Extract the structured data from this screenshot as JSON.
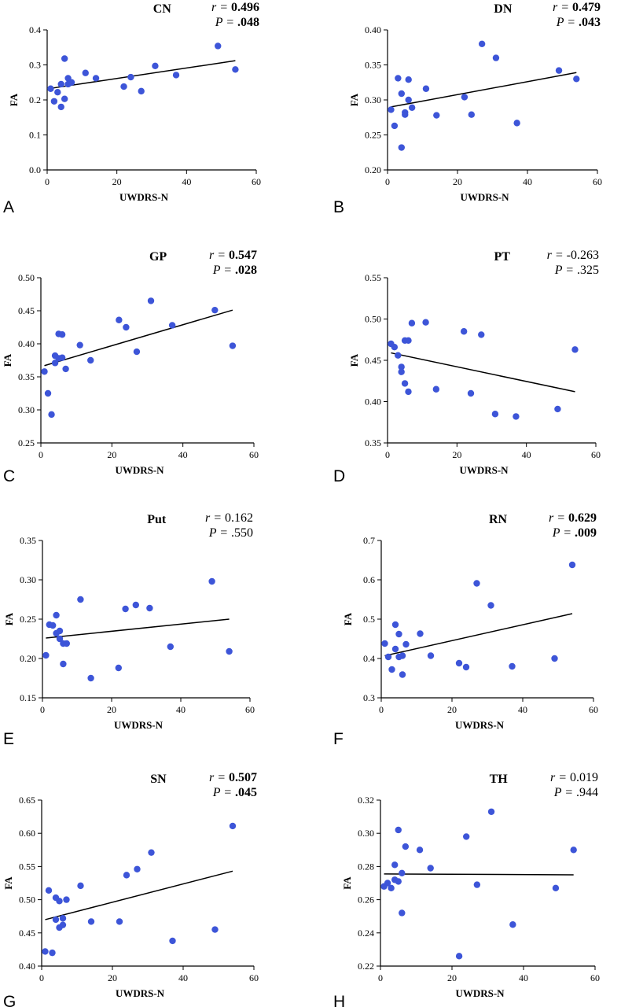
{
  "figure": {
    "panels": [
      {
        "letter": "A",
        "title": "CN",
        "ylabel": "FA",
        "xlabel": "UWDRS-N",
        "r_prefix": "r = ",
        "r_value": "0.496",
        "p_prefix": "P = ",
        "p_value": ".048",
        "significant": true
      },
      {
        "letter": "B",
        "title": "DN",
        "ylabel": "FA",
        "xlabel": "UWDRS-N",
        "r_prefix": "r = ",
        "r_value": "0.479",
        "p_prefix": "P = ",
        "p_value": ".043",
        "significant": true
      },
      {
        "letter": "C",
        "title": "GP",
        "ylabel": "FA",
        "xlabel": "UWDRS-N",
        "r_prefix": "r = ",
        "r_value": "0.547",
        "p_prefix": "P = ",
        "p_value": ".028",
        "significant": true
      },
      {
        "letter": "D",
        "title": "PT",
        "ylabel": "FA",
        "xlabel": "UWDRS-N",
        "r_prefix": "r = ",
        "r_value": "-0.263",
        "p_prefix": "P = ",
        "p_value": ".325",
        "significant": false
      },
      {
        "letter": "E",
        "title": "Put",
        "ylabel": "FA",
        "xlabel": "UWDRS-N",
        "r_prefix": "r = ",
        "r_value": "0.162",
        "p_prefix": "P = ",
        "p_value": ".550",
        "significant": false
      },
      {
        "letter": "F",
        "title": "RN",
        "ylabel": "FA",
        "xlabel": "UWDRS-N",
        "r_prefix": "r = ",
        "r_value": "0.629",
        "p_prefix": "P = ",
        "p_value": ".009",
        "significant": true
      },
      {
        "letter": "G",
        "title": "SN",
        "ylabel": "FA",
        "xlabel": "UWDRS-N",
        "r_prefix": "r = ",
        "r_value": "0.507",
        "p_prefix": "P = ",
        "p_value": ".045",
        "significant": true
      },
      {
        "letter": "H",
        "title": "TH",
        "ylabel": "FA",
        "xlabel": "UWDRS-N",
        "r_prefix": "r = ",
        "r_value": "0.019",
        "p_prefix": "P = ",
        "p_value": ".944",
        "significant": false
      }
    ]
  },
  "colors": {
    "points": "#3d55d8",
    "line": "#000000",
    "axis": "#000000",
    "background": "#ffffff"
  },
  "chart_data": [
    {
      "type": "scatter",
      "title": "CN",
      "xlabel": "UWDRS-N",
      "ylabel": "FA",
      "xlim": [
        0,
        60
      ],
      "ylim": [
        0.0,
        0.4
      ],
      "xticks": [
        "0",
        "20",
        "40",
        "60"
      ],
      "yticks": [
        "0.0",
        "0.1",
        "0.2",
        "0.3",
        "0.4"
      ],
      "x": [
        1,
        2,
        3,
        4,
        4,
        5,
        5,
        6,
        6,
        7,
        11,
        14,
        22,
        24,
        27,
        31,
        37,
        49,
        54
      ],
      "y": [
        0.232,
        0.196,
        0.222,
        0.245,
        0.18,
        0.318,
        0.203,
        0.262,
        0.245,
        0.25,
        0.277,
        0.262,
        0.238,
        0.265,
        0.225,
        0.297,
        0.271,
        0.354,
        0.287
      ],
      "fit": {
        "x": [
          1,
          54
        ],
        "y": [
          0.233,
          0.312
        ]
      },
      "annotations": {
        "r": "0.496",
        "p": ".048"
      },
      "grid": false
    },
    {
      "type": "scatter",
      "title": "DN",
      "xlabel": "UWDRS-N",
      "ylabel": "FA",
      "xlim": [
        0,
        60
      ],
      "ylim": [
        0.2,
        0.4
      ],
      "xticks": [
        "0",
        "20",
        "40",
        "60"
      ],
      "yticks": [
        "0.20",
        "0.25",
        "0.30",
        "0.35",
        "0.40"
      ],
      "x": [
        1,
        2,
        3,
        4,
        4,
        5,
        5,
        6,
        6,
        7,
        11,
        14,
        22,
        24,
        27,
        31,
        37,
        49,
        54
      ],
      "y": [
        0.286,
        0.263,
        0.331,
        0.309,
        0.232,
        0.282,
        0.279,
        0.329,
        0.3,
        0.289,
        0.316,
        0.278,
        0.304,
        0.279,
        0.38,
        0.36,
        0.267,
        0.342,
        0.33
      ],
      "fit": {
        "x": [
          1,
          54
        ],
        "y": [
          0.29,
          0.339
        ]
      },
      "annotations": {
        "r": "0.479",
        "p": ".043"
      },
      "grid": false
    },
    {
      "type": "scatter",
      "title": "GP",
      "xlabel": "UWDRS-N",
      "ylabel": "FA",
      "xlim": [
        0,
        60
      ],
      "ylim": [
        0.25,
        0.5
      ],
      "xticks": [
        "0",
        "20",
        "40",
        "60"
      ],
      "yticks": [
        "0.25",
        "0.30",
        "0.35",
        "0.40",
        "0.45",
        "0.50"
      ],
      "x": [
        1,
        2,
        3,
        4,
        4,
        5,
        5,
        6,
        6,
        7,
        11,
        14,
        22,
        24,
        27,
        31,
        37,
        49,
        54
      ],
      "y": [
        0.358,
        0.325,
        0.293,
        0.382,
        0.371,
        0.415,
        0.378,
        0.414,
        0.379,
        0.362,
        0.398,
        0.375,
        0.436,
        0.425,
        0.388,
        0.465,
        0.428,
        0.451,
        0.397
      ],
      "fit": {
        "x": [
          1,
          54
        ],
        "y": [
          0.367,
          0.451
        ]
      },
      "annotations": {
        "r": "0.547",
        "p": ".028"
      },
      "grid": false
    },
    {
      "type": "scatter",
      "title": "PT",
      "xlabel": "UWDRS-N",
      "ylabel": "FA",
      "xlim": [
        0,
        60
      ],
      "ylim": [
        0.35,
        0.55
      ],
      "xticks": [
        "0",
        "20",
        "40",
        "60"
      ],
      "yticks": [
        "0.35",
        "0.40",
        "0.45",
        "0.50",
        "0.55"
      ],
      "x": [
        1,
        2,
        3,
        4,
        4,
        5,
        5,
        6,
        6,
        7,
        11,
        14,
        22,
        24,
        27,
        31,
        37,
        49,
        54
      ],
      "y": [
        0.47,
        0.466,
        0.456,
        0.442,
        0.436,
        0.474,
        0.422,
        0.474,
        0.412,
        0.495,
        0.496,
        0.415,
        0.485,
        0.41,
        0.481,
        0.385,
        0.382,
        0.391,
        0.463
      ],
      "fit": {
        "x": [
          1,
          54
        ],
        "y": [
          0.459,
          0.412
        ]
      },
      "annotations": {
        "r": "-0.263",
        "p": ".325"
      },
      "grid": false
    },
    {
      "type": "scatter",
      "title": "Put",
      "xlabel": "UWDRS-N",
      "ylabel": "FA",
      "xlim": [
        0,
        60
      ],
      "ylim": [
        0.15,
        0.35
      ],
      "xticks": [
        "0",
        "20",
        "40",
        "60"
      ],
      "yticks": [
        "0.15",
        "0.20",
        "0.25",
        "0.30",
        "0.35"
      ],
      "x": [
        1,
        2,
        3,
        4,
        4,
        5,
        5,
        6,
        6,
        7,
        11,
        14,
        22,
        24,
        27,
        31,
        37,
        49,
        54
      ],
      "y": [
        0.204,
        0.243,
        0.242,
        0.255,
        0.232,
        0.235,
        0.225,
        0.193,
        0.219,
        0.219,
        0.275,
        0.175,
        0.188,
        0.263,
        0.268,
        0.264,
        0.215,
        0.298,
        0.209
      ],
      "fit": {
        "x": [
          1,
          54
        ],
        "y": [
          0.226,
          0.25
        ]
      },
      "annotations": {
        "r": "0.162",
        "p": ".550"
      },
      "grid": false
    },
    {
      "type": "scatter",
      "title": "RN",
      "xlabel": "UWDRS-N",
      "ylabel": "FA",
      "xlim": [
        0,
        60
      ],
      "ylim": [
        0.3,
        0.7
      ],
      "xticks": [
        "0",
        "20",
        "40",
        "60"
      ],
      "yticks": [
        "0.3",
        "0.4",
        "0.5",
        "0.6",
        "0.7"
      ],
      "x": [
        1,
        2,
        3,
        4,
        4,
        5,
        5,
        6,
        6,
        7,
        11,
        14,
        22,
        24,
        27,
        31,
        37,
        49,
        54
      ],
      "y": [
        0.438,
        0.404,
        0.372,
        0.486,
        0.424,
        0.462,
        0.404,
        0.359,
        0.407,
        0.436,
        0.463,
        0.407,
        0.388,
        0.378,
        0.591,
        0.535,
        0.38,
        0.4,
        0.638
      ],
      "fit": {
        "x": [
          1,
          54
        ],
        "y": [
          0.407,
          0.514
        ]
      },
      "annotations": {
        "r": "0.629",
        "p": ".009"
      },
      "grid": false
    },
    {
      "type": "scatter",
      "title": "SN",
      "xlabel": "UWDRS-N",
      "ylabel": "FA",
      "xlim": [
        0,
        60
      ],
      "ylim": [
        0.4,
        0.65
      ],
      "xticks": [
        "0",
        "20",
        "40",
        "60"
      ],
      "yticks": [
        "0.40",
        "0.45",
        "0.50",
        "0.55",
        "0.60",
        "0.65"
      ],
      "x": [
        1,
        2,
        3,
        4,
        4,
        5,
        5,
        6,
        6,
        7,
        11,
        14,
        22,
        24,
        27,
        31,
        37,
        49,
        54
      ],
      "y": [
        0.422,
        0.514,
        0.42,
        0.503,
        0.47,
        0.458,
        0.498,
        0.462,
        0.472,
        0.5,
        0.521,
        0.467,
        0.467,
        0.537,
        0.546,
        0.571,
        0.438,
        0.455,
        0.611
      ],
      "fit": {
        "x": [
          1,
          54
        ],
        "y": [
          0.47,
          0.543
        ]
      },
      "annotations": {
        "r": "0.507",
        "p": ".045"
      },
      "grid": false
    },
    {
      "type": "scatter",
      "title": "TH",
      "xlabel": "UWDRS-N",
      "ylabel": "FA",
      "xlim": [
        0,
        60
      ],
      "ylim": [
        0.22,
        0.32
      ],
      "xticks": [
        "0",
        "20",
        "40",
        "60"
      ],
      "yticks": [
        "0.22",
        "0.24",
        "0.26",
        "0.28",
        "0.30",
        "0.32"
      ],
      "x": [
        1,
        2,
        3,
        4,
        4,
        5,
        5,
        6,
        6,
        7,
        11,
        14,
        22,
        24,
        27,
        31,
        37,
        49,
        54
      ],
      "y": [
        0.268,
        0.27,
        0.267,
        0.281,
        0.272,
        0.302,
        0.271,
        0.276,
        0.252,
        0.292,
        0.29,
        0.279,
        0.226,
        0.298,
        0.269,
        0.313,
        0.245,
        0.267,
        0.29
      ],
      "fit": {
        "x": [
          1,
          54
        ],
        "y": [
          0.2755,
          0.275
        ]
      },
      "annotations": {
        "r": "0.019",
        "p": ".944"
      },
      "grid": false
    }
  ]
}
